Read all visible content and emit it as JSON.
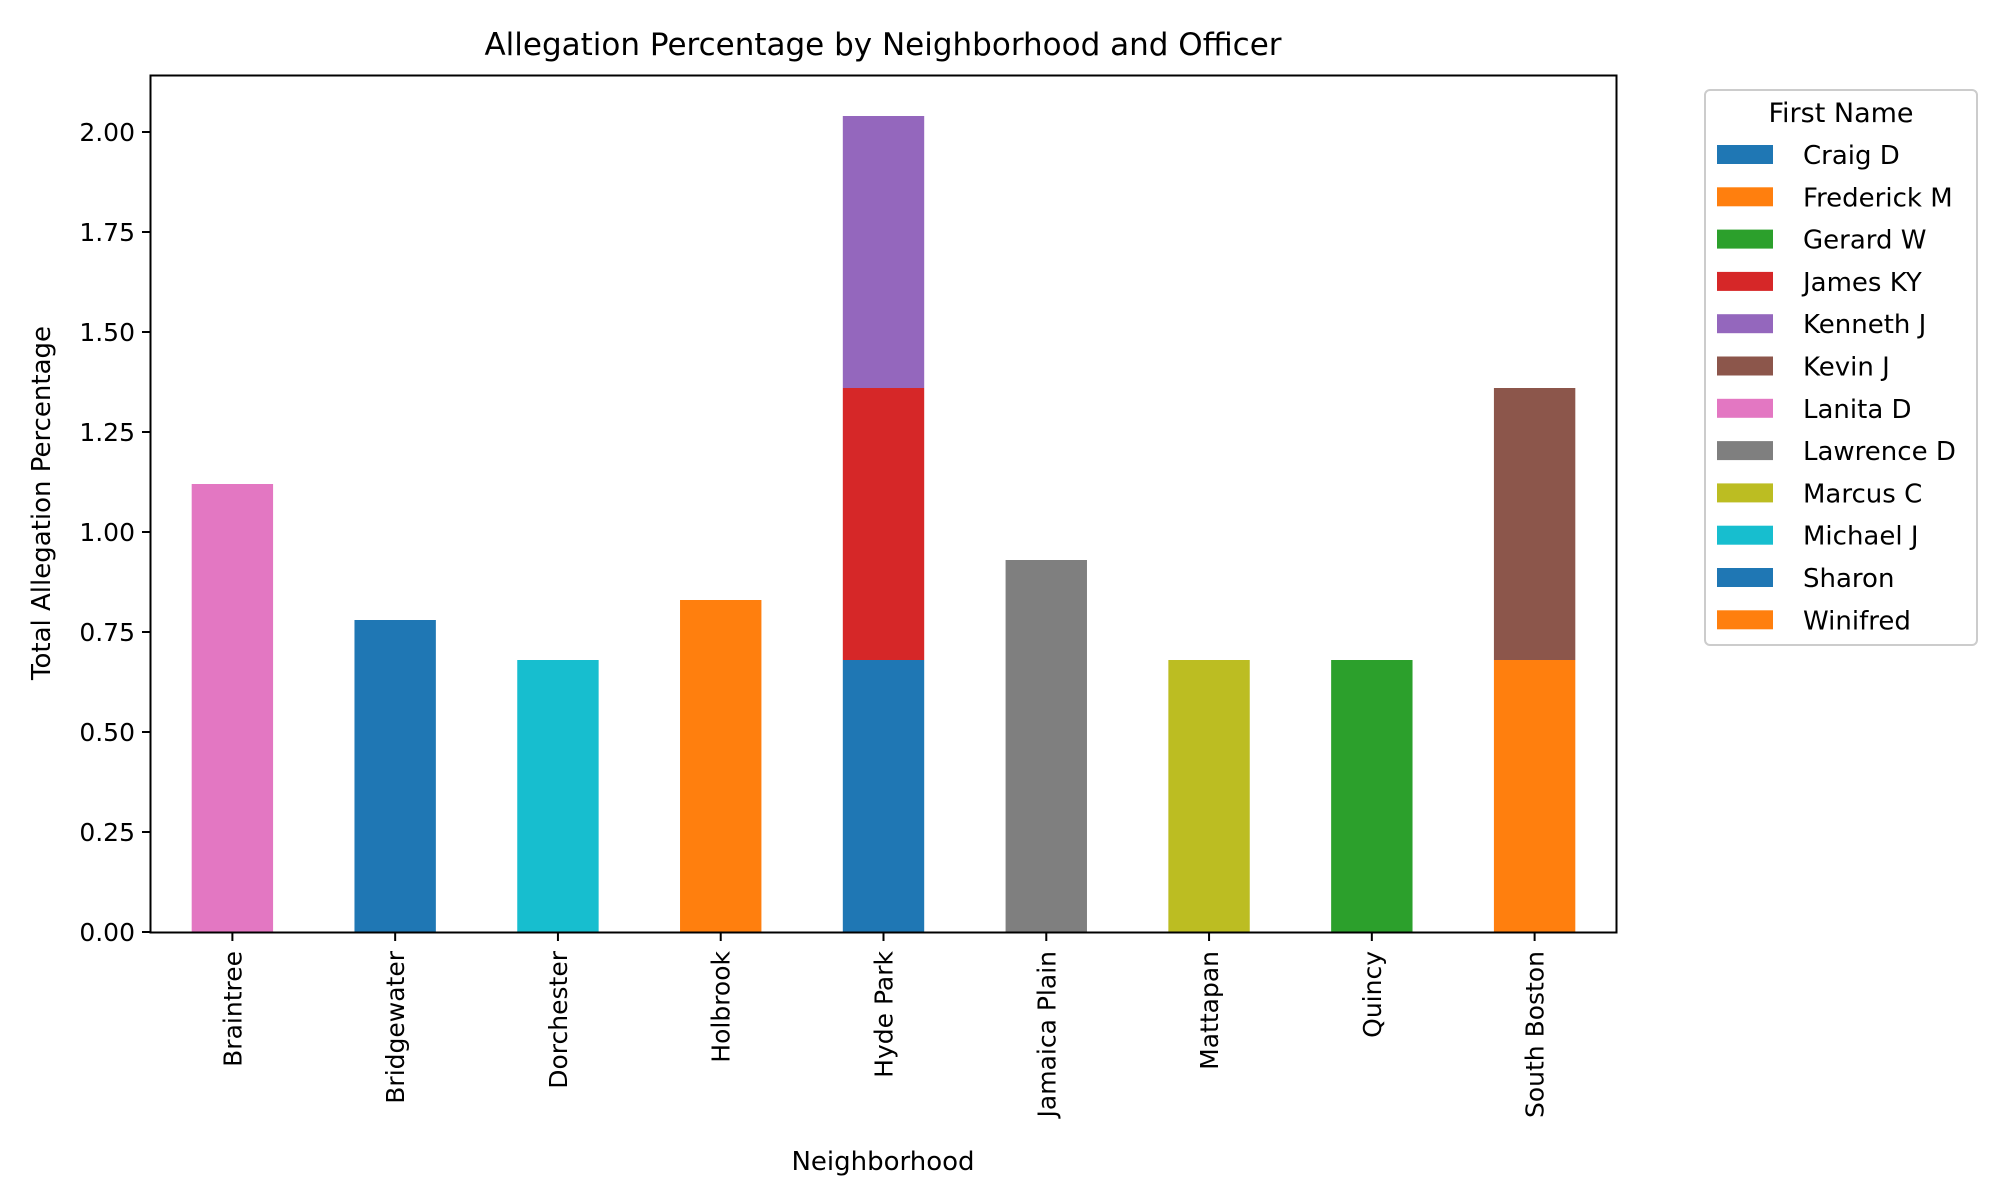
{
  "chart_data": {
    "type": "bar",
    "stacked": true,
    "title": "Allegation Percentage by Neighborhood and Officer",
    "xlabel": "Neighborhood",
    "ylabel": "Total Allegation Percentage",
    "ylim": [
      0,
      2.14
    ],
    "yticks": [
      "0.00",
      "0.25",
      "0.50",
      "0.75",
      "1.00",
      "1.25",
      "1.50",
      "1.75",
      "2.00"
    ],
    "ytick_values": [
      0,
      0.25,
      0.5,
      0.75,
      1.0,
      1.25,
      1.5,
      1.75,
      2.0
    ],
    "grid": false,
    "legend_title": "First Name",
    "legend_position": "outside-right",
    "categories": [
      "Braintree",
      "Bridgewater",
      "Dorchester",
      "Holbrook",
      "Hyde Park",
      "Jamaica Plain",
      "Mattapan",
      "Quincy",
      "South Boston"
    ],
    "series": [
      {
        "name": "Craig D",
        "color": "#1f77b4",
        "values": [
          0,
          0,
          0,
          0,
          0.68,
          0,
          0,
          0,
          0
        ]
      },
      {
        "name": "Frederick M",
        "color": "#ff7f0e",
        "values": [
          0,
          0,
          0,
          0,
          0,
          0,
          0,
          0,
          0.68
        ]
      },
      {
        "name": "Gerard W",
        "color": "#2ca02c",
        "values": [
          0,
          0,
          0,
          0,
          0,
          0,
          0,
          0.68,
          0
        ]
      },
      {
        "name": "James KY",
        "color": "#d62728",
        "values": [
          0,
          0,
          0,
          0,
          0.68,
          0,
          0,
          0,
          0
        ]
      },
      {
        "name": "Kenneth J",
        "color": "#9467bd",
        "values": [
          0,
          0,
          0,
          0,
          0.68,
          0,
          0,
          0,
          0
        ]
      },
      {
        "name": "Kevin J",
        "color": "#8c564b",
        "values": [
          0,
          0,
          0,
          0,
          0,
          0,
          0,
          0,
          0.68
        ]
      },
      {
        "name": "Lanita D",
        "color": "#e377c2",
        "values": [
          1.12,
          0,
          0,
          0,
          0,
          0,
          0,
          0,
          0
        ]
      },
      {
        "name": "Lawrence D",
        "color": "#7f7f7f",
        "values": [
          0,
          0,
          0,
          0,
          0,
          0.93,
          0,
          0,
          0
        ]
      },
      {
        "name": "Marcus C",
        "color": "#bcbd22",
        "values": [
          0,
          0,
          0,
          0,
          0,
          0,
          0.68,
          0,
          0
        ]
      },
      {
        "name": "Michael J",
        "color": "#17becf",
        "values": [
          0,
          0,
          0.68,
          0,
          0,
          0,
          0,
          0,
          0
        ]
      },
      {
        "name": "Sharon",
        "color": "#1f77b4",
        "values": [
          0,
          0.78,
          0,
          0,
          0,
          0,
          0,
          0,
          0
        ]
      },
      {
        "name": "Winifred",
        "color": "#ff7f0e",
        "values": [
          0,
          0,
          0,
          0.83,
          0,
          0,
          0,
          0,
          0
        ]
      }
    ]
  }
}
